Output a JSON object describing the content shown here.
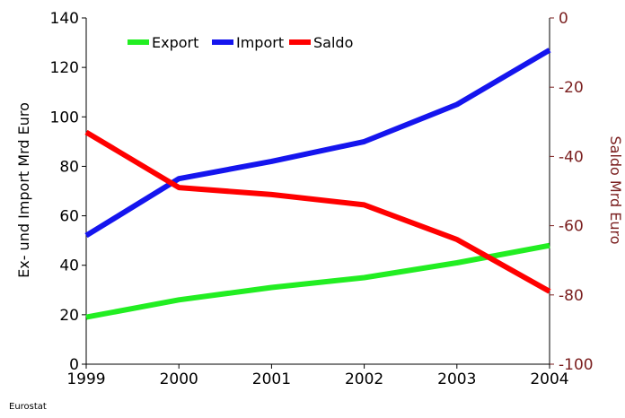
{
  "chart_data": {
    "type": "line",
    "x": [
      "1999",
      "2000",
      "2001",
      "2002",
      "2003",
      "2004"
    ],
    "ylabel_left": "Ex- und Import Mrd Euro",
    "ylim_left": [
      0,
      140
    ],
    "yticks_left": [
      "0",
      "20",
      "40",
      "60",
      "80",
      "100",
      "120",
      "140"
    ],
    "ylabel_right": "Saldo Mrd Euro",
    "ylim_right": [
      -100,
      0
    ],
    "yticks_right": [
      "0",
      "-20",
      "-40",
      "-60",
      "-80",
      "-100"
    ],
    "series": [
      {
        "name": "Export",
        "axis": "left",
        "color": "#22ee22",
        "values": [
          19,
          26,
          31,
          35,
          41,
          48
        ]
      },
      {
        "name": "Import",
        "axis": "left",
        "color": "#1515ee",
        "values": [
          52,
          75,
          82,
          90,
          105,
          127
        ]
      },
      {
        "name": "Saldo",
        "axis": "right",
        "color": "#ff0000",
        "values": [
          -33,
          -49,
          -51,
          -54,
          -64,
          -79
        ]
      }
    ],
    "legend_position": "top",
    "grid": false,
    "source": "Eurostat"
  }
}
